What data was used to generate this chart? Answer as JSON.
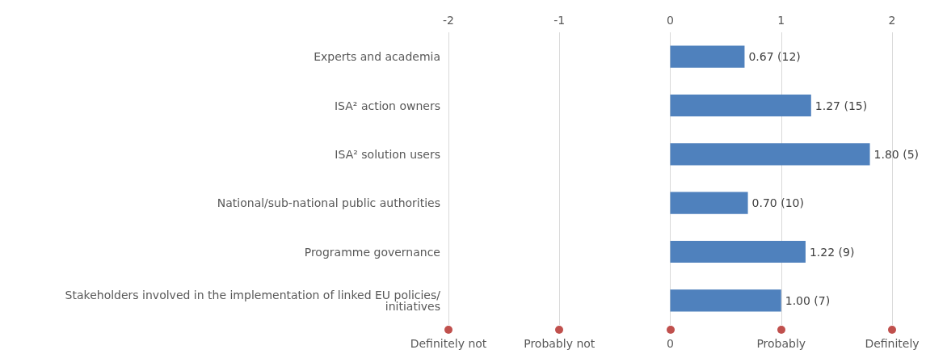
{
  "chart_data": {
    "type": "bar",
    "orientation": "horizontal",
    "categories": [
      "Experts and academia",
      "ISA² action owners",
      "ISA² solution users",
      "National/sub-national public authorities",
      "Programme governance",
      "Stakeholders involved in the implementation of linked EU policies/initiatives"
    ],
    "values": [
      0.67,
      1.27,
      1.8,
      0.7,
      1.22,
      1.0
    ],
    "value_labels": [
      "0.67 (12)",
      "1.27 (15)",
      "1.80 (5)",
      "0.70 (10)",
      "1.22 (9)",
      "1.00 (7)"
    ],
    "color": "#4f81bd",
    "xlim": [
      -2,
      2
    ],
    "xticks": [
      -2,
      -1,
      0,
      1,
      2
    ],
    "annotations": [
      "Definitely not",
      "Probably not",
      "0",
      "Probably",
      "Definitely"
    ],
    "grid": "x",
    "marker": "circle"
  }
}
